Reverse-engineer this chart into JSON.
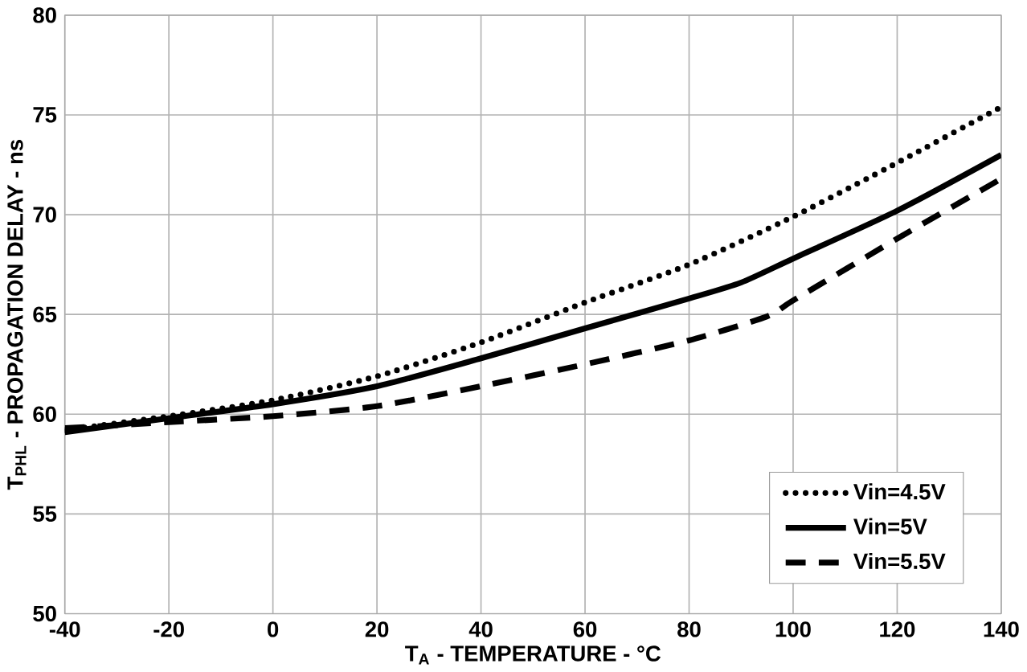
{
  "chart_data": {
    "type": "line",
    "xlabel": "T$_{A}$ - TEMPERATURE - °C",
    "ylabel": "T$_{PHL}$ - PROPAGATION DELAY - ns",
    "series": [
      {
        "name": "Vin=4.5V",
        "color": "#000000",
        "line_style": "dotted",
        "x": [
          -40,
          -20,
          0,
          20,
          40,
          60,
          80,
          100,
          120,
          140
        ],
        "values": [
          59.2,
          59.9,
          60.7,
          61.9,
          63.6,
          65.6,
          67.5,
          69.9,
          72.6,
          75.4
        ]
      },
      {
        "name": "Vin=5V",
        "color": "#000000",
        "line_style": "solid",
        "x": [
          -40,
          -20,
          0,
          20,
          40,
          60,
          80,
          90,
          100,
          120,
          140
        ],
        "values": [
          59.1,
          59.8,
          60.5,
          61.4,
          62.8,
          64.3,
          65.8,
          66.6,
          67.8,
          70.2,
          73.0
        ]
      },
      {
        "name": "Vin=5.5V",
        "color": "#000000",
        "line_style": "dashed",
        "x": [
          -40,
          -20,
          0,
          20,
          40,
          60,
          80,
          95,
          100,
          120,
          140
        ],
        "values": [
          59.3,
          59.6,
          59.9,
          60.4,
          61.4,
          62.5,
          63.7,
          64.9,
          65.7,
          68.8,
          71.8
        ]
      }
    ],
    "xlim": [
      -40,
      140
    ],
    "ylim": [
      50,
      80
    ],
    "xticks": [
      -40,
      -20,
      0,
      20,
      40,
      60,
      80,
      100,
      120,
      140
    ],
    "yticks": [
      50,
      55,
      60,
      65,
      70,
      75,
      80
    ],
    "grid": true,
    "legend": "bottom right",
    "marker": "none"
  }
}
